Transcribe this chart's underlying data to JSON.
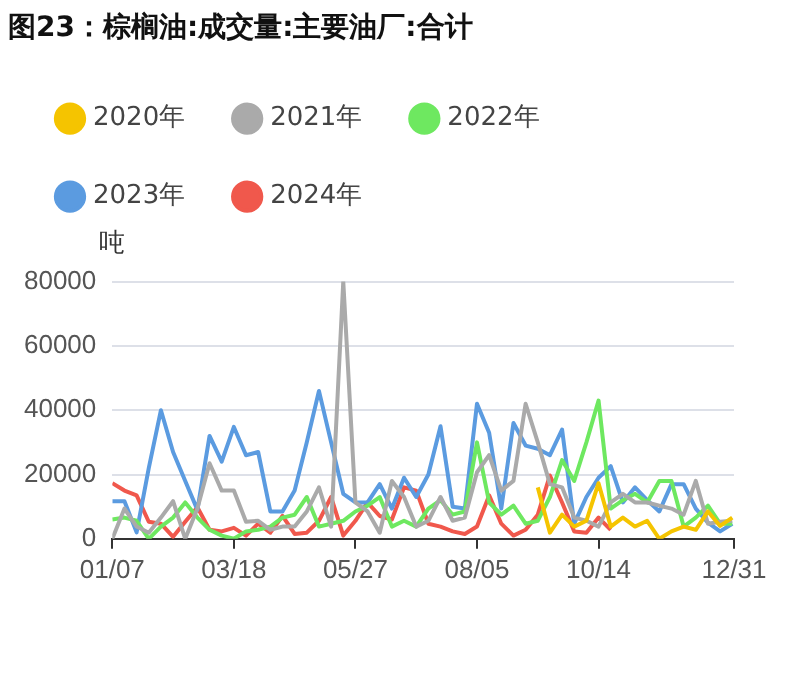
{
  "chart_data": {
    "type": "line",
    "title": "图23：棕榈油:成交量:主要油厂:合计",
    "ylabel": "吨",
    "x": [
      "--01-07",
      "--01-14",
      "--01-21",
      "--01-28",
      "--02-04",
      "--02-11",
      "--02-18",
      "--02-25",
      "--03-04",
      "--03-11",
      "--03-18",
      "--03-25",
      "--04-01",
      "--04-08",
      "--04-15",
      "--04-22",
      "--04-29",
      "--05-06",
      "--05-13",
      "--05-20",
      "--05-27",
      "--06-03",
      "--06-10",
      "--06-17",
      "--06-24",
      "--07-01",
      "--07-08",
      "--07-15",
      "--07-22",
      "--07-29",
      "--08-05",
      "--08-12",
      "--08-19",
      "--08-26",
      "--09-02",
      "--09-09",
      "--09-16",
      "--09-23",
      "--09-30",
      "--10-07",
      "--10-14",
      "--10-21",
      "--10-28",
      "--11-04",
      "--11-11",
      "--11-18",
      "--11-25",
      "--12-02",
      "--12-09",
      "--12-16",
      "--12-23",
      "--12-30"
    ],
    "series": [
      {
        "name": "2020年",
        "color": "#f5c400",
        "values": [
          null,
          null,
          null,
          null,
          null,
          null,
          null,
          null,
          null,
          null,
          null,
          null,
          null,
          null,
          null,
          null,
          null,
          null,
          null,
          null,
          null,
          null,
          null,
          null,
          null,
          null,
          null,
          null,
          null,
          null,
          null,
          null,
          null,
          null,
          null,
          16000,
          1900,
          7500,
          3800,
          5600,
          17300,
          3800,
          6600,
          3800,
          5600,
          0,
          2300,
          3800,
          2800,
          8500,
          4000,
          6600
        ]
      },
      {
        "name": "2021年",
        "color": "#aaaaaa",
        "values": [
          0,
          9400,
          3800,
          1900,
          6600,
          11700,
          0,
          9400,
          23500,
          15000,
          15000,
          5300,
          5600,
          2800,
          3800,
          3800,
          8500,
          16000,
          3800,
          80000,
          11300,
          8500,
          1900,
          18000,
          13000,
          3800,
          5600,
          13000,
          5600,
          6600,
          20700,
          26000,
          15000,
          18000,
          42000,
          30000,
          17000,
          16000,
          6600,
          5600,
          3800,
          11300,
          14000,
          11300,
          11300,
          10300,
          9400,
          7500,
          18000,
          4700,
          5300,
          5600
        ]
      },
      {
        "name": "2022年",
        "color": "#6ee860",
        "values": [
          6000,
          6600,
          5600,
          0,
          3800,
          6600,
          11300,
          6600,
          2800,
          1000,
          0,
          2300,
          2800,
          3800,
          6600,
          7500,
          13000,
          3800,
          4700,
          5600,
          8500,
          10300,
          13000,
          3800,
          5600,
          3800,
          9400,
          12000,
          7500,
          8500,
          30000,
          11300,
          7500,
          10300,
          4700,
          5600,
          13000,
          24500,
          18000,
          30000,
          43000,
          9400,
          12000,
          14000,
          11300,
          18000,
          18000,
          3800,
          6600,
          10300,
          4700,
          4700
        ]
      },
      {
        "name": "2023年",
        "color": "#5b9be0",
        "values": [
          11700,
          11700,
          2000,
          22000,
          40000,
          27000,
          18000,
          9000,
          32000,
          24000,
          34800,
          26000,
          27000,
          8500,
          8500,
          15000,
          30000,
          46000,
          30000,
          14000,
          11300,
          11300,
          17000,
          9400,
          19000,
          13000,
          20000,
          35000,
          10000,
          9400,
          42000,
          33000,
          9400,
          36000,
          29000,
          28000,
          26000,
          34000,
          4700,
          13000,
          19000,
          22600,
          11300,
          16000,
          12000,
          8500,
          17000,
          17000,
          9400,
          5000,
          2300,
          4700
        ]
      },
      {
        "name": "2024年",
        "color": "#f0584c",
        "values": [
          17300,
          15000,
          13500,
          5300,
          4700,
          600,
          5300,
          9800,
          2800,
          2300,
          3400,
          1000,
          4700,
          1900,
          7100,
          1500,
          1900,
          5600,
          13000,
          1000,
          5600,
          11300,
          7100,
          6000,
          16000,
          15000,
          4700,
          3800,
          2300,
          1500,
          3800,
          13500,
          4700,
          1000,
          2800,
          7500,
          19700,
          11300,
          2300,
          1900,
          6600,
          2800,
          null,
          null,
          null,
          null,
          null,
          null,
          null,
          null,
          null,
          null
        ]
      }
    ],
    "xlim": [
      "--01-07",
      "--12-31"
    ],
    "xticks": [
      {
        "value": "--01-07",
        "label": "01/07"
      },
      {
        "value": "--03-18",
        "label": "03/18"
      },
      {
        "value": "--05-27",
        "label": "05/27"
      },
      {
        "value": "--08-05",
        "label": "08/05"
      },
      {
        "value": "--10-14",
        "label": "10/14"
      },
      {
        "value": "--12-31",
        "label": "12/31"
      }
    ],
    "ylim": [
      0,
      80000
    ],
    "yticks": [
      0,
      20000,
      40000,
      60000,
      80000
    ],
    "grid": "y",
    "legend": "top",
    "marker": "none",
    "line_style": "solid"
  }
}
